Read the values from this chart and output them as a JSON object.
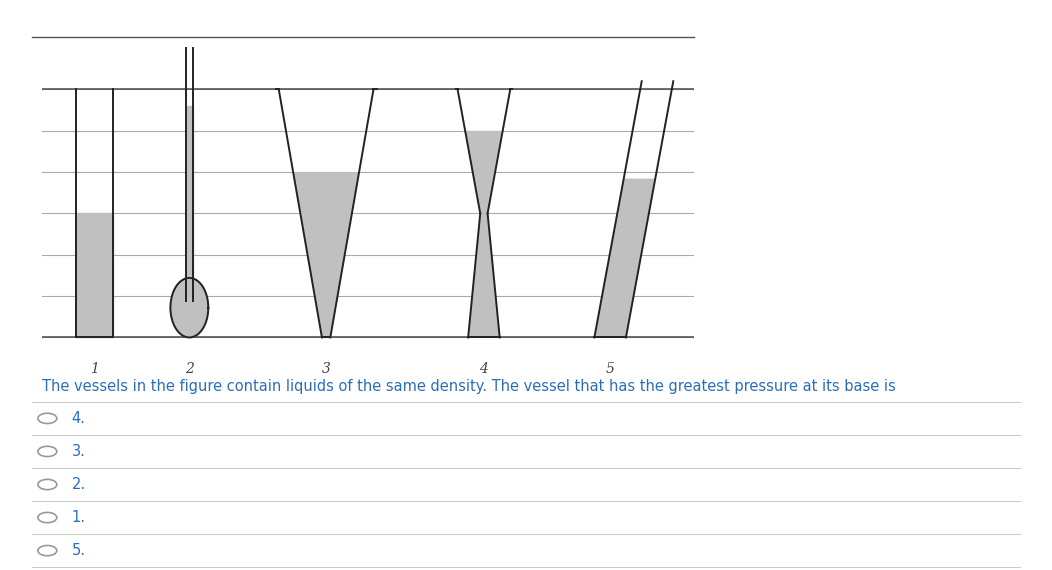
{
  "bg_color": "#ffffff",
  "figure_width": 10.52,
  "figure_height": 5.7,
  "liquid_color": "#c0c0c0",
  "vessel_edge_color": "#222222",
  "hline_color": "#aaaaaa",
  "question_text": "The vessels in the figure contain liquids of the same density. The vessel that has the greatest pressure at its base is",
  "question_color": "#2a6ebb",
  "options": [
    "4.",
    "3.",
    "2.",
    "1.",
    "5."
  ],
  "option_color": "#2a6ebb",
  "label_color": "#444444",
  "vessel_labels": [
    "1",
    "2",
    "3",
    "4",
    "5"
  ],
  "option_circle_color": "#999999",
  "divider_color": "#cccccc",
  "border_color": "#555555"
}
